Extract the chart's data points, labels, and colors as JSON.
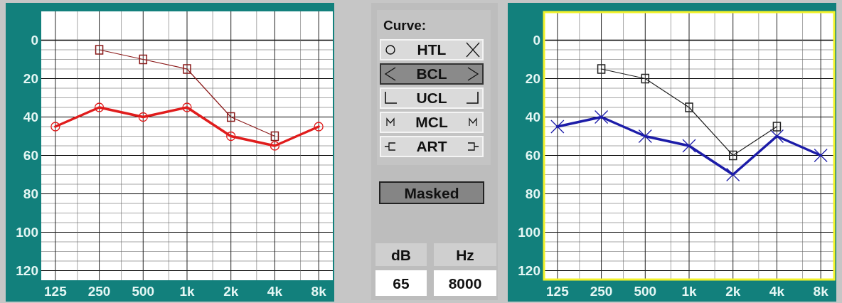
{
  "chart_data": [
    {
      "type": "line",
      "x": [
        125,
        250,
        500,
        1000,
        2000,
        4000,
        8000
      ],
      "log": "x",
      "xlim": [
        100,
        10000
      ],
      "ylim": [
        125,
        -15
      ],
      "grid": true,
      "xticks": [
        125,
        {
          "value": 177,
          "label": null
        },
        250,
        {
          "value": 354,
          "label": null
        },
        500,
        {
          "value": 750,
          "label": null
        },
        {
          "value": 1000,
          "label": "1k"
        },
        {
          "value": 1500,
          "label": null
        },
        {
          "value": 2000,
          "label": "2k"
        },
        {
          "value": 3000,
          "label": null
        },
        {
          "value": 4000,
          "label": "4k"
        },
        {
          "value": 6000,
          "label": null
        },
        {
          "value": 8000,
          "label": "8k"
        }
      ],
      "yticks": [
        0,
        {
          "value": 5,
          "label": null
        },
        {
          "value": 10,
          "label": null
        },
        {
          "value": 15,
          "label": null
        },
        20,
        {
          "value": 25,
          "label": null
        },
        {
          "value": 30,
          "label": null
        },
        {
          "value": 35,
          "label": null
        },
        40,
        {
          "value": 45,
          "label": null
        },
        {
          "value": 50,
          "label": null
        },
        {
          "value": 55,
          "label": null
        },
        60,
        {
          "value": 65,
          "label": null
        },
        {
          "value": 70,
          "label": null
        },
        {
          "value": 75,
          "label": null
        },
        80,
        {
          "value": 85,
          "label": null
        },
        {
          "value": 90,
          "label": null
        },
        {
          "value": 95,
          "label": null
        },
        100,
        {
          "value": 105,
          "label": null
        },
        {
          "value": 110,
          "label": null
        },
        {
          "value": 115,
          "label": null
        },
        120
      ],
      "series": [
        {
          "color": "#e01c1c",
          "marker": "circle",
          "values": [
            45,
            35,
            40,
            35,
            50,
            55,
            45
          ]
        },
        {
          "color": "#8b1a1a",
          "marker": "square",
          "x": [
            250,
            500,
            1000,
            2000,
            4000
          ],
          "values": [
            5,
            10,
            15,
            40,
            50
          ]
        }
      ]
    },
    {
      "type": "other",
      "annotations": [
        "Curve:",
        "HTL",
        "BCL",
        "UCL",
        "MCL",
        "ART",
        "Masked",
        "dB",
        "Hz",
        "65",
        "8000"
      ]
    },
    {
      "type": "line",
      "x": [
        125,
        250,
        500,
        1000,
        2000,
        4000,
        8000
      ],
      "log": "x",
      "xlim": [
        100,
        10000
      ],
      "ylim": [
        125,
        -15
      ],
      "grid": true,
      "xticks": [
        125,
        {
          "value": 177,
          "label": null
        },
        250,
        {
          "value": 354,
          "label": null
        },
        500,
        {
          "value": 750,
          "label": null
        },
        {
          "value": 1000,
          "label": "1k"
        },
        {
          "value": 1500,
          "label": null
        },
        {
          "value": 2000,
          "label": "2k"
        },
        {
          "value": 3000,
          "label": null
        },
        {
          "value": 4000,
          "label": "4k"
        },
        {
          "value": 6000,
          "label": null
        },
        {
          "value": 8000,
          "label": "8k"
        }
      ],
      "yticks": [
        0,
        {
          "value": 5,
          "label": null
        },
        {
          "value": 10,
          "label": null
        },
        {
          "value": 15,
          "label": null
        },
        20,
        {
          "value": 25,
          "label": null
        },
        {
          "value": 30,
          "label": null
        },
        {
          "value": 35,
          "label": null
        },
        40,
        {
          "value": 45,
          "label": null
        },
        {
          "value": 50,
          "label": null
        },
        {
          "value": 55,
          "label": null
        },
        60,
        {
          "value": 65,
          "label": null
        },
        {
          "value": 70,
          "label": null
        },
        {
          "value": 75,
          "label": null
        },
        80,
        {
          "value": 85,
          "label": null
        },
        {
          "value": 90,
          "label": null
        },
        {
          "value": 95,
          "label": null
        },
        100,
        {
          "value": 105,
          "label": null
        },
        {
          "value": 110,
          "label": null
        },
        {
          "value": 115,
          "label": null
        },
        120
      ],
      "series": [
        {
          "color": "#1c1ca8",
          "marker": "cross",
          "values": [
            45,
            40,
            50,
            55,
            70,
            50,
            60
          ]
        },
        {
          "color": "#202020",
          "marker": "square",
          "x": [
            250,
            500,
            1000,
            2000,
            4000
          ],
          "values": [
            15,
            20,
            35,
            60,
            45
          ]
        }
      ]
    }
  ]
}
